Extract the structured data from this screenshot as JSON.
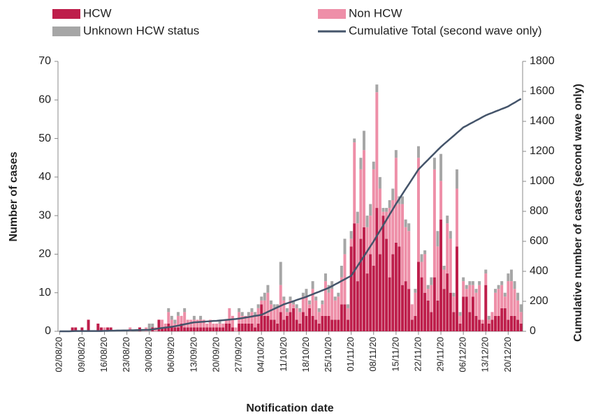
{
  "chart_data": {
    "type": "bar",
    "stacked": true,
    "ylabel": "Number of cases",
    "y2label": "Cumulative number of cases (second wave only)",
    "xlabel": "Notification date",
    "categories": [
      "02/08/20",
      null,
      null,
      null,
      null,
      null,
      null,
      "09/08/20",
      null,
      null,
      null,
      null,
      null,
      null,
      "16/08/20",
      null,
      null,
      null,
      null,
      null,
      null,
      "23/08/20",
      null,
      null,
      null,
      null,
      null,
      null,
      "30/08/20",
      null,
      null,
      null,
      null,
      null,
      null,
      "06/09/20",
      null,
      null,
      null,
      null,
      null,
      null,
      "13/09/20",
      null,
      null,
      null,
      null,
      null,
      null,
      "20/09/20",
      null,
      null,
      null,
      null,
      null,
      null,
      "27/09/20",
      null,
      null,
      null,
      null,
      null,
      null,
      "04/10/20",
      null,
      null,
      null,
      null,
      null,
      null,
      "11/10/20",
      null,
      null,
      null,
      null,
      null,
      null,
      "18/10/20",
      null,
      null,
      null,
      null,
      null,
      null,
      "25/10/20",
      null,
      null,
      null,
      null,
      null,
      null,
      "01/11/20",
      null,
      null,
      null,
      null,
      null,
      null,
      "08/11/20",
      null,
      null,
      null,
      null,
      null,
      null,
      "15/11/20",
      null,
      null,
      null,
      null,
      null,
      null,
      "22/11/20",
      null,
      null,
      null,
      null,
      null,
      null,
      "29/11/20",
      null,
      null,
      null,
      null,
      null,
      null,
      "06/12/20",
      null,
      null,
      null,
      null,
      null,
      null,
      "13/12/20",
      null,
      null,
      null,
      null,
      null,
      null,
      "20/12/20",
      null,
      null,
      null,
      null
    ],
    "series": [
      {
        "name": "HCW",
        "color": "#be1e4b",
        "values": [
          0,
          0,
          0,
          0,
          1,
          1,
          0,
          1,
          0,
          3,
          0,
          0,
          2,
          1,
          0,
          1,
          1,
          0,
          0,
          0,
          0,
          0,
          0,
          0,
          0,
          1,
          0,
          0,
          0,
          1,
          0,
          3,
          1,
          1,
          2,
          1,
          1,
          1,
          2,
          1,
          1,
          1,
          1,
          1,
          1,
          1,
          1,
          1,
          1,
          1,
          1,
          1,
          2,
          2,
          1,
          0,
          2,
          2,
          2,
          2,
          2,
          1,
          2,
          7,
          4,
          4,
          3,
          3,
          2,
          5,
          3,
          4,
          5,
          6,
          3,
          2,
          5,
          4,
          6,
          4,
          3,
          2,
          4,
          4,
          4,
          3,
          3,
          3,
          7,
          7,
          3,
          22,
          28,
          13,
          24,
          27,
          15,
          20,
          17,
          32,
          20,
          30,
          24,
          14,
          20,
          23,
          22,
          12,
          13,
          11,
          3,
          4,
          18,
          14,
          10,
          8,
          5,
          14,
          8,
          29,
          11,
          15,
          10,
          5,
          22,
          2,
          9,
          9,
          5,
          9,
          4,
          3,
          2,
          12,
          2,
          3,
          4,
          4,
          6,
          6,
          3,
          4,
          4,
          3,
          2
        ]
      },
      {
        "name": "Non HCW",
        "color": "#ee8fa8",
        "values": [
          0,
          0,
          0,
          0,
          0,
          0,
          0,
          0,
          0,
          0,
          0,
          0,
          0,
          0,
          1,
          0,
          0,
          0,
          0,
          0,
          0,
          0,
          1,
          0,
          0,
          0,
          0,
          1,
          0,
          0,
          1,
          0,
          2,
          1,
          3,
          2,
          1,
          3,
          2,
          4,
          2,
          2,
          2,
          2,
          2,
          2,
          1,
          2,
          1,
          1,
          1,
          1,
          1,
          4,
          3,
          1,
          3,
          2,
          2,
          2,
          3,
          3,
          4,
          1,
          4,
          6,
          4,
          3,
          4,
          7,
          5,
          1,
          3,
          1,
          3,
          3,
          4,
          5,
          1,
          7,
          5,
          3,
          3,
          9,
          6,
          8,
          5,
          6,
          7,
          13,
          3,
          2,
          21,
          15,
          18,
          20,
          12,
          10,
          25,
          30,
          17,
          1,
          7,
          18,
          14,
          22,
          11,
          21,
          14,
          15,
          4,
          6,
          27,
          4,
          10,
          3,
          7,
          28,
          14,
          10,
          5,
          13,
          14,
          4,
          15,
          2,
          4,
          2,
          7,
          3,
          6,
          9,
          1,
          3,
          1,
          2,
          6,
          7,
          6,
          3,
          10,
          9,
          7,
          5,
          3
        ]
      },
      {
        "name": "Unknown HCW status",
        "color": "#a6a6a6",
        "values": [
          0,
          0,
          0,
          0,
          0,
          0,
          0,
          0,
          0,
          0,
          0,
          0,
          0,
          0,
          0,
          0,
          0,
          0,
          0,
          0,
          0,
          0,
          0,
          0,
          0,
          0,
          0,
          0,
          2,
          1,
          0,
          0,
          0,
          0,
          1,
          1,
          1,
          1,
          0,
          1,
          0,
          0,
          1,
          0,
          1,
          0,
          0,
          0,
          0,
          0,
          1,
          0,
          0,
          0,
          0,
          0,
          1,
          1,
          0,
          1,
          1,
          1,
          1,
          1,
          2,
          2,
          1,
          1,
          1,
          6,
          1,
          1,
          1,
          1,
          1,
          1,
          1,
          2,
          1,
          2,
          1,
          1,
          1,
          2,
          2,
          2,
          1,
          1,
          3,
          4,
          1,
          2,
          1,
          3,
          3,
          5,
          3,
          3,
          2,
          2,
          3,
          1,
          1,
          2,
          3,
          2,
          2,
          2,
          2,
          2,
          0,
          1,
          3,
          2,
          1,
          1,
          2,
          3,
          4,
          7,
          1,
          2,
          2,
          1,
          5,
          1,
          1,
          1,
          1,
          1,
          1,
          1,
          0,
          1,
          1,
          0,
          1,
          1,
          1,
          1,
          2,
          3,
          2,
          2,
          2
        ]
      },
      {
        "name": "Cumulative Total (second wave only)",
        "color": "#44546a",
        "axis": "y2",
        "kind": "line",
        "values": [
          0,
          0,
          0,
          0,
          1,
          2,
          2,
          2,
          2,
          2,
          2,
          2,
          2,
          2,
          3,
          3,
          4,
          4,
          5,
          5,
          6,
          6,
          7,
          7,
          8,
          8,
          9,
          9,
          10,
          13,
          16,
          19,
          22,
          25,
          27,
          30,
          34,
          38,
          42,
          47,
          51,
          56,
          60,
          61,
          63,
          64,
          66,
          67,
          69,
          70,
          72,
          74,
          76,
          78,
          80,
          82,
          85,
          88,
          92,
          95,
          99,
          103,
          106,
          110,
          120,
          130,
          140,
          150,
          160,
          170,
          180,
          187,
          194,
          201,
          209,
          216,
          223,
          230,
          239,
          247,
          256,
          264,
          273,
          281,
          290,
          301,
          313,
          324,
          336,
          347,
          359,
          370,
          403,
          436,
          469,
          501,
          534,
          567,
          600,
          636,
          671,
          707,
          743,
          779,
          814,
          850,
          883,
          916,
          949,
          981,
          1014,
          1047,
          1080,
          1101,
          1123,
          1144,
          1166,
          1187,
          1209,
          1230,
          1249,
          1267,
          1286,
          1304,
          1323,
          1341,
          1360,
          1371,
          1383,
          1394,
          1406,
          1417,
          1429,
          1440,
          1449,
          1457,
          1466,
          1474,
          1483,
          1491,
          1500,
          1513,
          1525,
          1538,
          1550
        ]
      }
    ],
    "ylim": [
      0,
      70
    ],
    "yticks": [
      0,
      10,
      20,
      30,
      40,
      50,
      60,
      70
    ],
    "y2lim": [
      0,
      1800
    ],
    "y2ticks": [
      0,
      200,
      400,
      600,
      800,
      1000,
      1200,
      1400,
      1600,
      1800
    ],
    "grid": false
  }
}
